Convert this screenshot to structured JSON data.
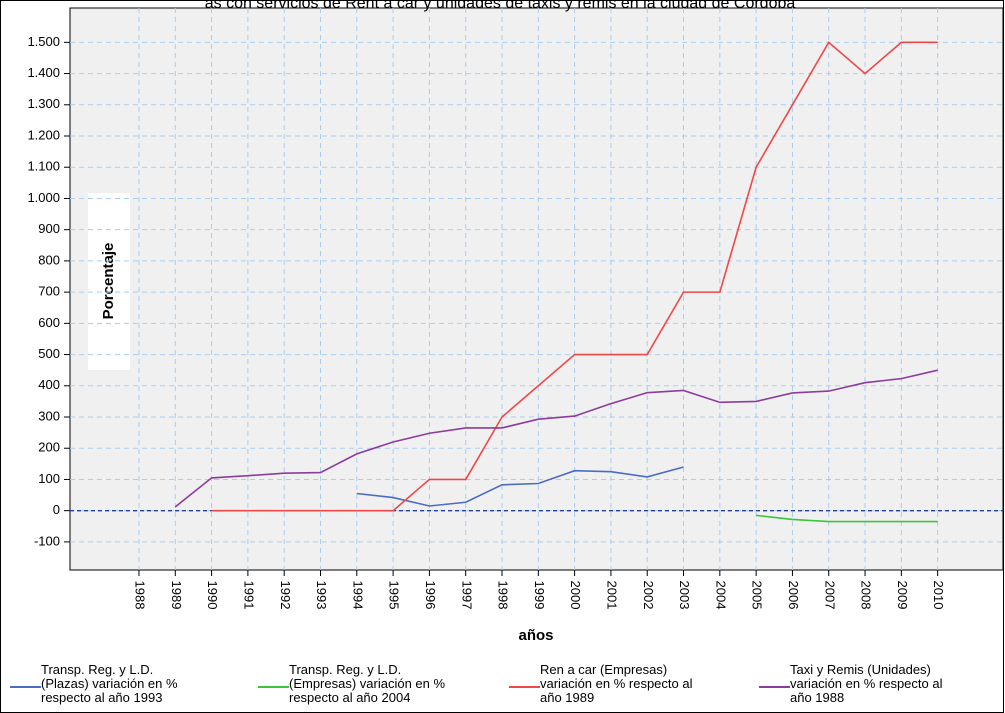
{
  "chart_data": {
    "type": "line",
    "title": "as con servicios de Rent a car y unidades de taxis y remis en la ciudad de Córdoba",
    "ylabel": "Porcentaje",
    "xlabel": "años",
    "x": [
      1988,
      1989,
      1990,
      1991,
      1992,
      1993,
      1994,
      1995,
      1996,
      1997,
      1998,
      1999,
      2000,
      2001,
      2002,
      2003,
      2004,
      2005,
      2006,
      2007,
      2008,
      2009,
      2010
    ],
    "xlim": [
      1986.1,
      2011.8
    ],
    "xticks": [
      1988,
      1989,
      1990,
      1991,
      1992,
      1993,
      1994,
      1995,
      1996,
      1997,
      1998,
      1999,
      2000,
      2001,
      2002,
      2003,
      2004,
      2005,
      2006,
      2007,
      2008,
      2009,
      2010
    ],
    "ylim": [
      -190,
      1610
    ],
    "yticks": [
      -100,
      0,
      100,
      200,
      300,
      400,
      500,
      600,
      700,
      800,
      900,
      {
        "value": 1000,
        "label": "1.000"
      },
      {
        "value": 1100,
        "label": "1.100"
      },
      {
        "value": 1200,
        "label": "1.200"
      },
      {
        "value": 1300,
        "label": "1.300"
      },
      {
        "value": 1400,
        "label": "1.400"
      },
      {
        "value": 1500,
        "label": "1.500"
      }
    ],
    "grid": true,
    "reference_line": 0,
    "legend": "bottom",
    "series": [
      {
        "name": "Transp. Reg. y L.D.\n(Plazas) variación en %\nrespecto al año 1993",
        "color": "#4a6cc4",
        "values": [
          null,
          null,
          null,
          null,
          null,
          null,
          55,
          42,
          15,
          27,
          83,
          87,
          128,
          125,
          108,
          140,
          null,
          null,
          null,
          null,
          null,
          null,
          null
        ]
      },
      {
        "name": "Transp. Reg. y L.D.\n(Empresas)  variación en %\nrespecto al año 2004",
        "color": "#3cc43c",
        "values": [
          null,
          null,
          null,
          null,
          null,
          null,
          null,
          null,
          null,
          null,
          null,
          null,
          null,
          null,
          null,
          null,
          null,
          -15,
          -28,
          -35,
          -35,
          -35,
          -35
        ]
      },
      {
        "name": "Ren a car (Empresas)\nvariación en % respecto al\naño 1989",
        "color": "#f04848",
        "values": [
          null,
          null,
          0,
          0,
          0,
          0,
          0,
          0,
          100,
          100,
          300,
          400,
          500,
          500,
          500,
          700,
          700,
          1100,
          1300,
          1500,
          1400,
          1500,
          1500
        ]
      },
      {
        "name": "Taxi y Remis  (Unidades)\nvariación en % respecto al\naño 1988",
        "color": "#8c3c9c",
        "values": [
          null,
          12,
          105,
          112,
          120,
          122,
          182,
          220,
          248,
          265,
          265,
          293,
          303,
          343,
          378,
          385,
          347,
          350,
          377,
          383,
          410,
          423,
          450
        ]
      }
    ]
  }
}
